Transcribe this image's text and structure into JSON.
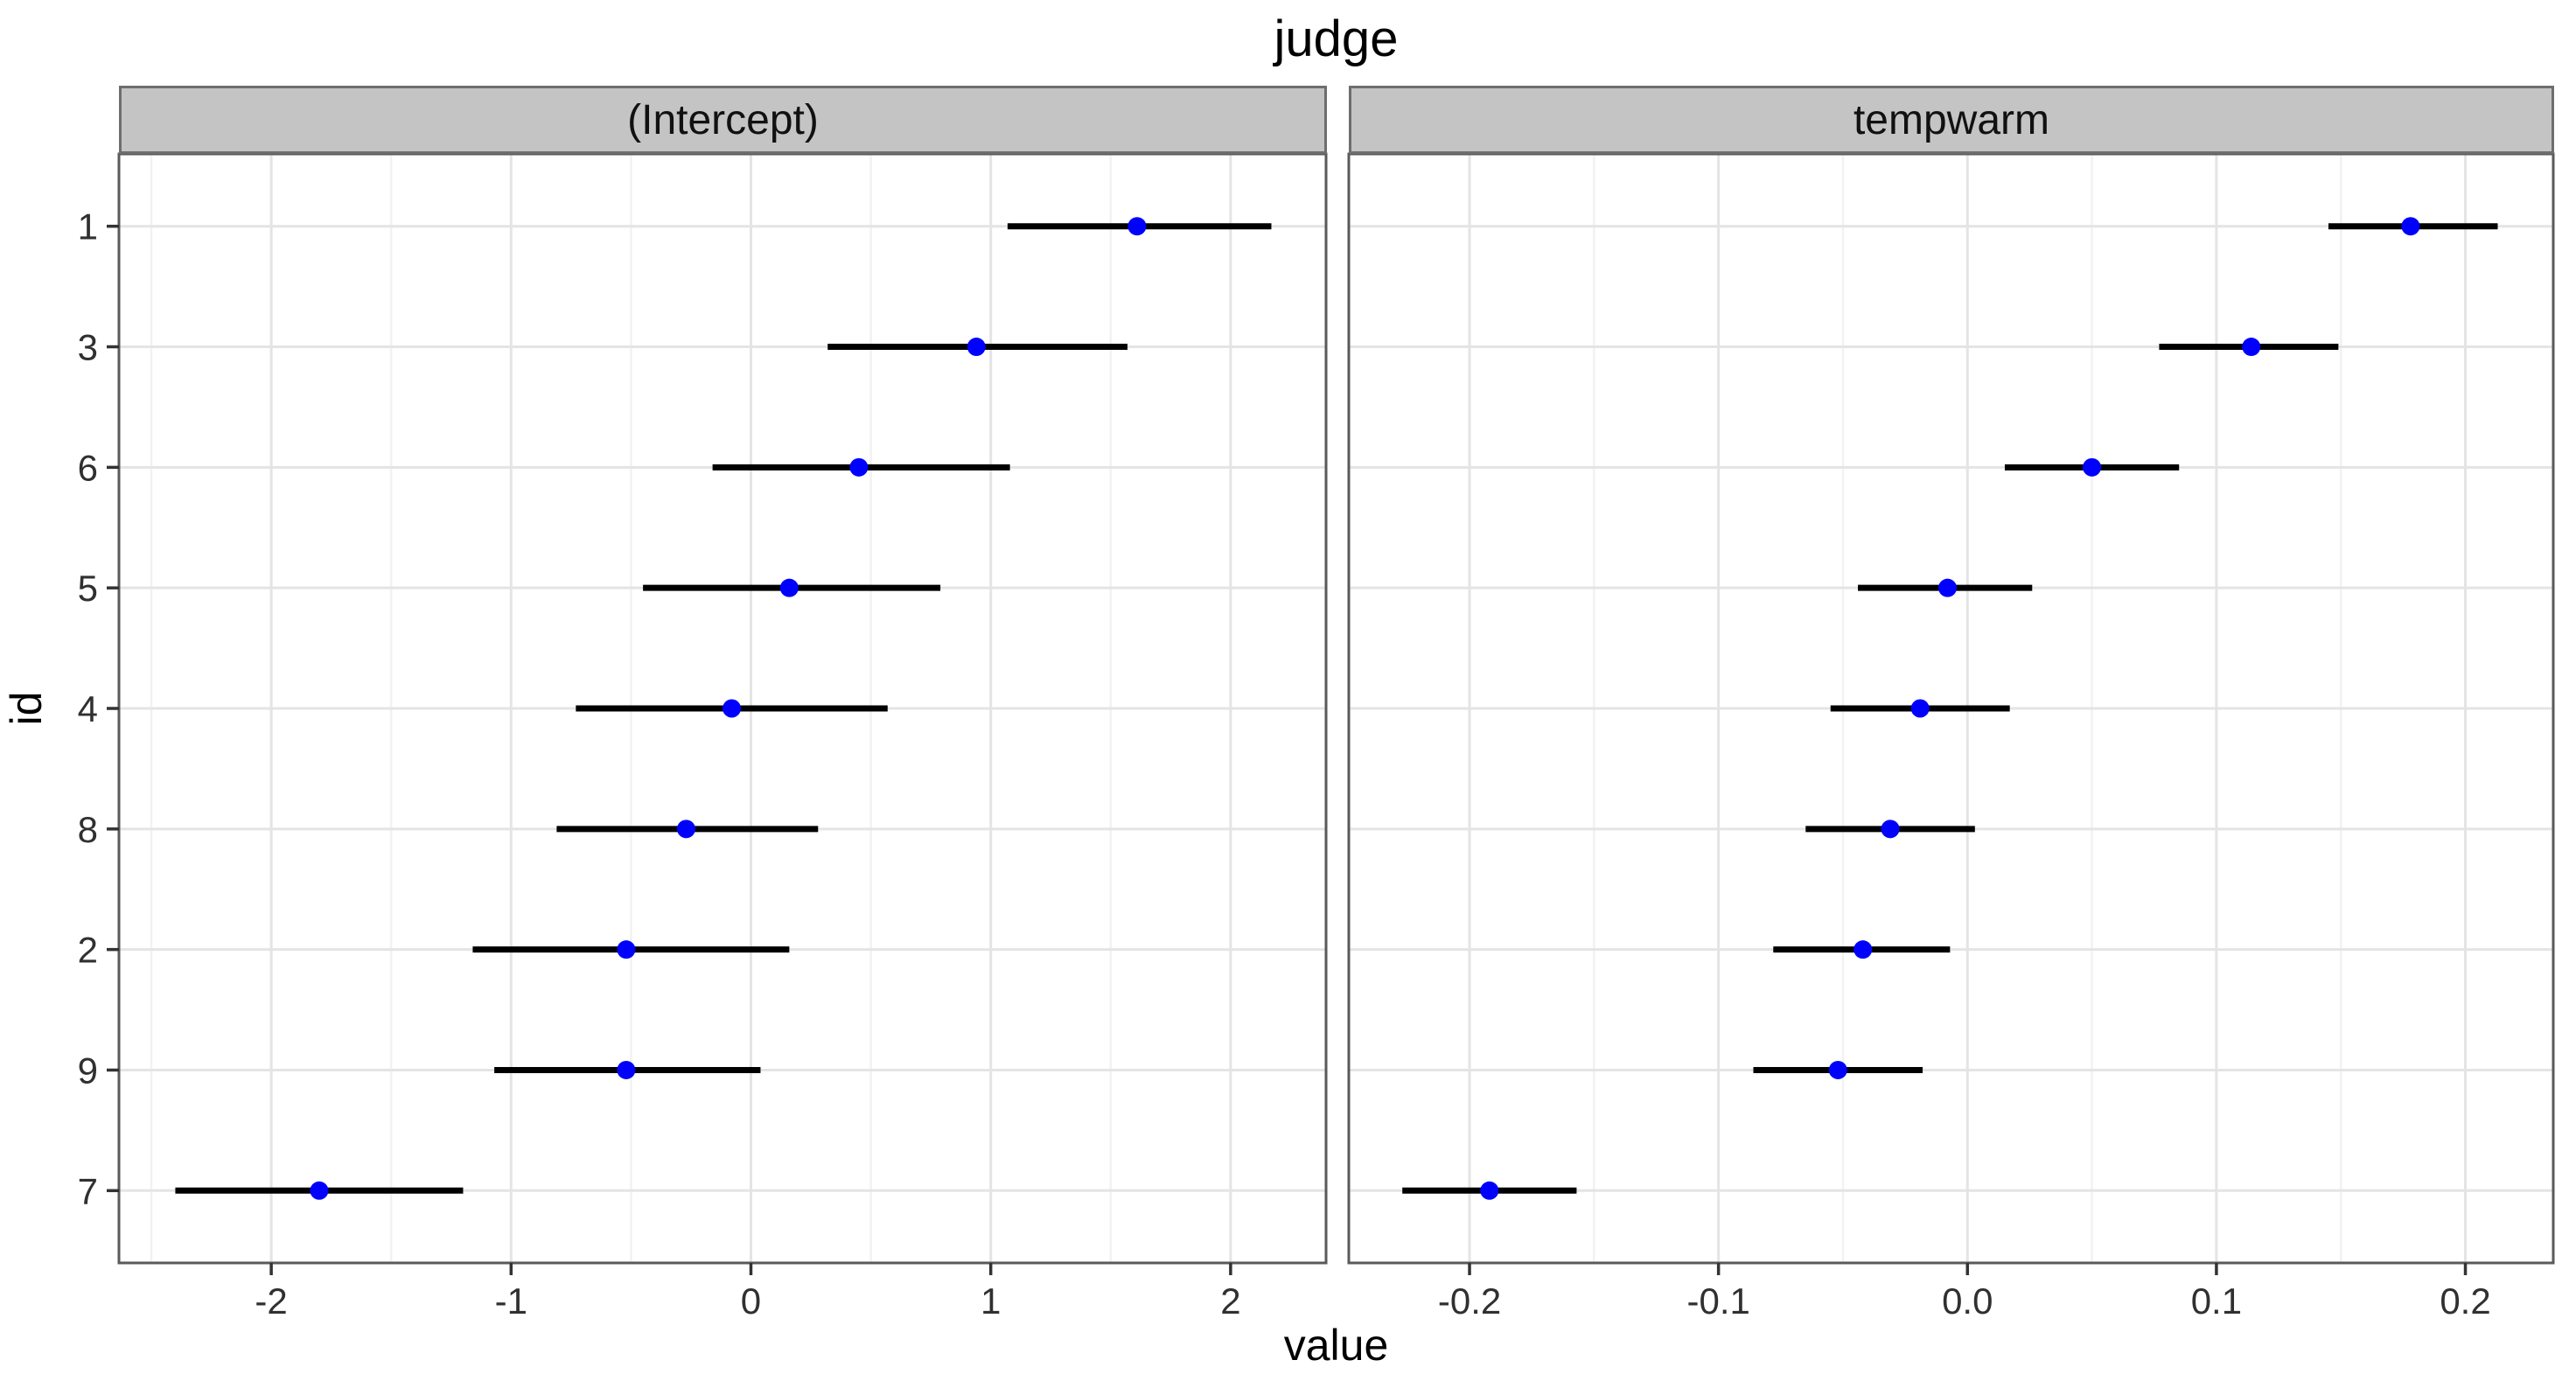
{
  "colors": {
    "point": "#0000FF",
    "error_bar": "#000000",
    "strip_fill": "#C4C4C4",
    "strip_border": "#6E6E6E",
    "panel_border": "#5A5A5A",
    "grid_major": "#E4E4E4",
    "grid_minor": "#F2F2F2",
    "axis_tick": "#333333",
    "tick_label": "#303030",
    "panel_bg": "#FFFFFF"
  },
  "chart_data": {
    "type": "pointrange (faceted dot-and-interval plot)",
    "title": "judge",
    "xlabel": "value",
    "ylabel": "id",
    "legend": "none",
    "grid": "major and minor vertical, major horizontal",
    "y_categories_top_to_bottom": [
      "1",
      "3",
      "6",
      "5",
      "4",
      "8",
      "2",
      "9",
      "7"
    ],
    "facets": [
      {
        "label": "(Intercept)",
        "xlim": [
          -2.635,
          2.398
        ],
        "major_ticks": [
          {
            "v": -2,
            "label": "-2"
          },
          {
            "v": -1,
            "label": "-1"
          },
          {
            "v": 0,
            "label": "0"
          },
          {
            "v": 1,
            "label": "1"
          },
          {
            "v": 2,
            "label": "2"
          }
        ],
        "minor_ticks": [
          -2.5,
          -1.5,
          -0.5,
          0.5,
          1.5
        ],
        "points": [
          {
            "id": "1",
            "est": 1.61,
            "lo": 1.07,
            "hi": 2.17
          },
          {
            "id": "3",
            "est": 0.94,
            "lo": 0.32,
            "hi": 1.57
          },
          {
            "id": "6",
            "est": 0.45,
            "lo": -0.16,
            "hi": 1.08
          },
          {
            "id": "5",
            "est": 0.16,
            "lo": -0.45,
            "hi": 0.79
          },
          {
            "id": "4",
            "est": -0.08,
            "lo": -0.73,
            "hi": 0.57
          },
          {
            "id": "8",
            "est": -0.27,
            "lo": -0.81,
            "hi": 0.28
          },
          {
            "id": "2",
            "est": -0.52,
            "lo": -1.16,
            "hi": 0.16
          },
          {
            "id": "9",
            "est": -0.52,
            "lo": -1.07,
            "hi": 0.04
          },
          {
            "id": "7",
            "est": -1.8,
            "lo": -2.4,
            "hi": -1.2
          }
        ]
      },
      {
        "label": "tempwarm",
        "xlim": [
          -0.2485,
          0.2353
        ],
        "major_ticks": [
          {
            "v": -0.2,
            "label": "-0.2"
          },
          {
            "v": -0.1,
            "label": "-0.1"
          },
          {
            "v": 0.0,
            "label": "0.0"
          },
          {
            "v": 0.1,
            "label": "0.1"
          },
          {
            "v": 0.2,
            "label": "0.2"
          }
        ],
        "minor_ticks": [
          -0.15,
          -0.05,
          0.05,
          0.15
        ],
        "points": [
          {
            "id": "1",
            "est": 0.178,
            "lo": 0.145,
            "hi": 0.213
          },
          {
            "id": "3",
            "est": 0.114,
            "lo": 0.077,
            "hi": 0.149
          },
          {
            "id": "6",
            "est": 0.05,
            "lo": 0.015,
            "hi": 0.085
          },
          {
            "id": "5",
            "est": -0.008,
            "lo": -0.044,
            "hi": 0.026
          },
          {
            "id": "4",
            "est": -0.019,
            "lo": -0.055,
            "hi": 0.017
          },
          {
            "id": "8",
            "est": -0.031,
            "lo": -0.065,
            "hi": 0.003
          },
          {
            "id": "2",
            "est": -0.042,
            "lo": -0.078,
            "hi": -0.007
          },
          {
            "id": "9",
            "est": -0.052,
            "lo": -0.086,
            "hi": -0.018
          },
          {
            "id": "7",
            "est": -0.192,
            "lo": -0.227,
            "hi": -0.157
          }
        ]
      }
    ]
  }
}
